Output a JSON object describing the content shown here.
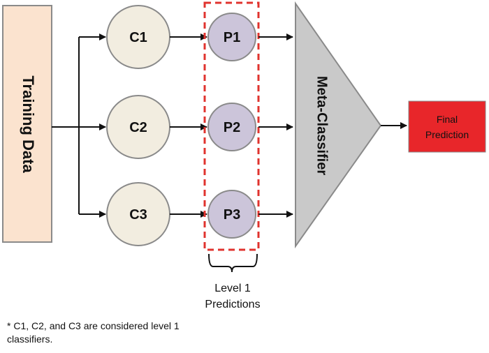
{
  "diagram": {
    "training_data_label": "Training Data",
    "classifiers": [
      {
        "label": "C1"
      },
      {
        "label": "C2"
      },
      {
        "label": "C3"
      }
    ],
    "predictions": [
      {
        "label": "P1"
      },
      {
        "label": "P2"
      },
      {
        "label": "P3"
      }
    ],
    "meta_classifier_label": "Meta-Classifier",
    "final_prediction": {
      "line1": "Final",
      "line2": "Prediction"
    },
    "level_label": {
      "line1": "Level 1",
      "line2": "Predictions"
    },
    "footnote": "* C1, C2, and C3 are considered level 1 classifiers."
  },
  "colors": {
    "training_fill": "#fbe3cf",
    "classifier_fill": "#f2ede0",
    "prediction_fill": "#ccc5da",
    "meta_fill": "#c9c9c9",
    "final_fill": "#e8262a",
    "dashed_box": "#e0332e"
  }
}
